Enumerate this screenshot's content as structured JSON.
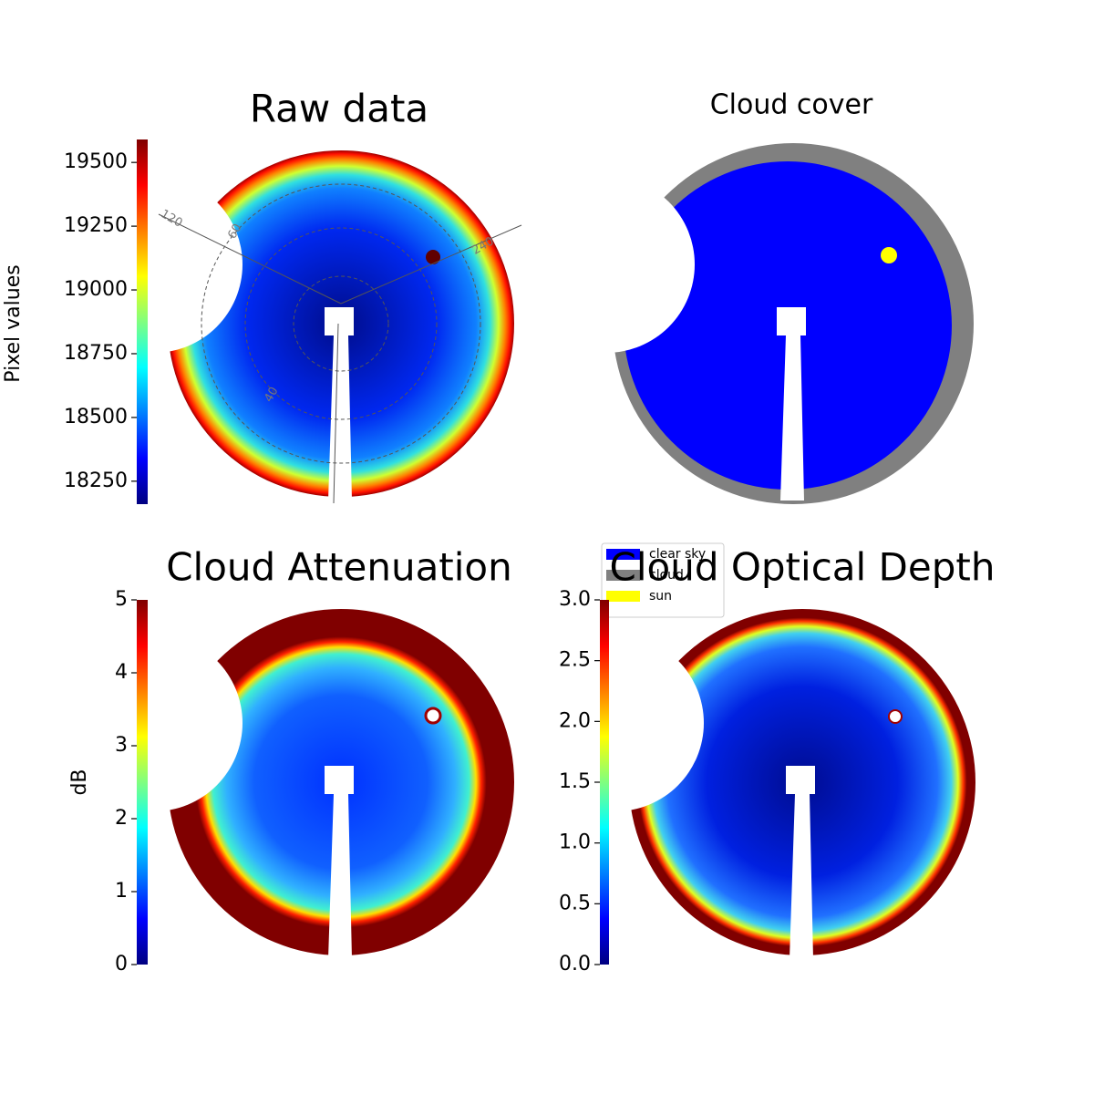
{
  "chart_data": [
    {
      "type": "image",
      "title": "Raw data",
      "colorbar": {
        "label": "Pixel values",
        "lim": [
          18160,
          19590
        ],
        "ticks": [
          18250,
          18500,
          18750,
          19000,
          19250,
          19500
        ]
      },
      "annotations": [
        "120",
        "60",
        "240",
        "40"
      ]
    },
    {
      "type": "categorical-image",
      "title": "Cloud cover",
      "legend": {
        "series": [
          {
            "name": "clear sky",
            "color": "#0000ff"
          },
          {
            "name": "cloud",
            "color": "#808080"
          },
          {
            "name": "sun",
            "color": "#ffff00"
          }
        ]
      }
    },
    {
      "type": "image",
      "title": "Cloud Attenuation",
      "colorbar": {
        "label": "dB",
        "lim": [
          0,
          5
        ],
        "ticks": [
          0,
          1,
          2,
          3,
          4,
          5
        ]
      }
    },
    {
      "type": "image",
      "title": "Cloud Optical Depth",
      "colorbar": {
        "lim": [
          0,
          3
        ],
        "ticks": [
          {
            "value": 0,
            "label": "0.0"
          },
          {
            "value": 0.5,
            "label": "0.5"
          },
          {
            "value": 1,
            "label": "1.0"
          },
          {
            "value": 1.5,
            "label": "1.5"
          },
          {
            "value": 2,
            "label": "2.0"
          },
          {
            "value": 2.5,
            "label": "2.5"
          },
          {
            "value": 3,
            "label": "3.0"
          }
        ]
      }
    }
  ]
}
